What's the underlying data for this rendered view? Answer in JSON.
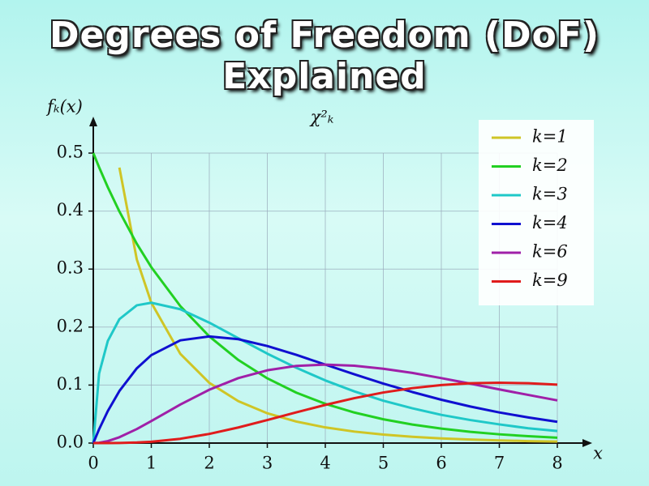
{
  "title": "Degrees of Freedom (DoF) Explained",
  "chart_data": {
    "type": "line",
    "title": "χ²ₖ",
    "x_label": "x",
    "y_label": "fₖ(x)",
    "x": [
      0,
      0.1,
      0.25,
      0.45,
      0.75,
      1,
      1.5,
      2,
      2.5,
      3,
      3.5,
      4,
      4.5,
      5,
      5.5,
      6,
      6.5,
      7,
      7.5,
      8
    ],
    "series": [
      {
        "name": "k=1",
        "color": "#cfc526",
        "values": [
          null,
          null,
          null,
          0.475,
          0.3166,
          0.242,
          0.1539,
          0.1038,
          0.0723,
          0.0514,
          0.0371,
          0.027,
          0.0198,
          0.0146,
          0.0109,
          0.0081,
          0.0061,
          0.0046,
          0.0034,
          0.0026
        ]
      },
      {
        "name": "k=2",
        "color": "#22d022",
        "values": [
          0.5,
          0.4756,
          0.4412,
          0.3993,
          0.3437,
          0.3033,
          0.2362,
          0.1839,
          0.1433,
          0.1116,
          0.0869,
          0.0677,
          0.0527,
          0.041,
          0.032,
          0.0249,
          0.0194,
          0.0151,
          0.0118,
          0.0092
        ]
      },
      {
        "name": "k=3",
        "color": "#1fc8c8",
        "values": [
          0,
          0.12,
          0.176,
          0.2137,
          0.2375,
          0.242,
          0.2308,
          0.2076,
          0.1808,
          0.1542,
          0.1298,
          0.108,
          0.0891,
          0.073,
          0.06,
          0.0486,
          0.0397,
          0.0322,
          0.0255,
          0.0208
        ]
      },
      {
        "name": "k=4",
        "color": "#1010d0",
        "values": [
          0,
          0.0238,
          0.0552,
          0.0898,
          0.1289,
          0.1516,
          0.1771,
          0.1839,
          0.1791,
          0.1673,
          0.1521,
          0.1353,
          0.1186,
          0.1026,
          0.088,
          0.0747,
          0.063,
          0.0528,
          0.0442,
          0.0366
        ]
      },
      {
        "name": "k=6",
        "color": "#a020a8",
        "values": [
          0,
          0.0006,
          0.0034,
          0.0101,
          0.0242,
          0.0379,
          0.0664,
          0.092,
          0.112,
          0.1255,
          0.1331,
          0.1353,
          0.1334,
          0.1282,
          0.121,
          0.112,
          0.1025,
          0.0925,
          0.083,
          0.0736
        ]
      },
      {
        "name": "k=9",
        "color": "#e01c1c",
        "values": [
          0,
          0,
          0,
          0.0002,
          0.001,
          0.0023,
          0.0074,
          0.0158,
          0.0269,
          0.0397,
          0.053,
          0.0658,
          0.0774,
          0.0872,
          0.0947,
          0.1001,
          0.1032,
          0.1041,
          0.1032,
          0.1007
        ]
      }
    ],
    "xlim": [
      0,
      8
    ],
    "xticks": [
      0,
      1,
      2,
      3,
      4,
      5,
      6,
      7,
      8
    ],
    "ylim": [
      0,
      0.5
    ],
    "yticks": [
      {
        "value": 0,
        "label": "0.0"
      },
      0.1,
      0.2,
      0.3,
      0.4,
      0.5
    ],
    "grid": true,
    "legend": "upper right"
  }
}
